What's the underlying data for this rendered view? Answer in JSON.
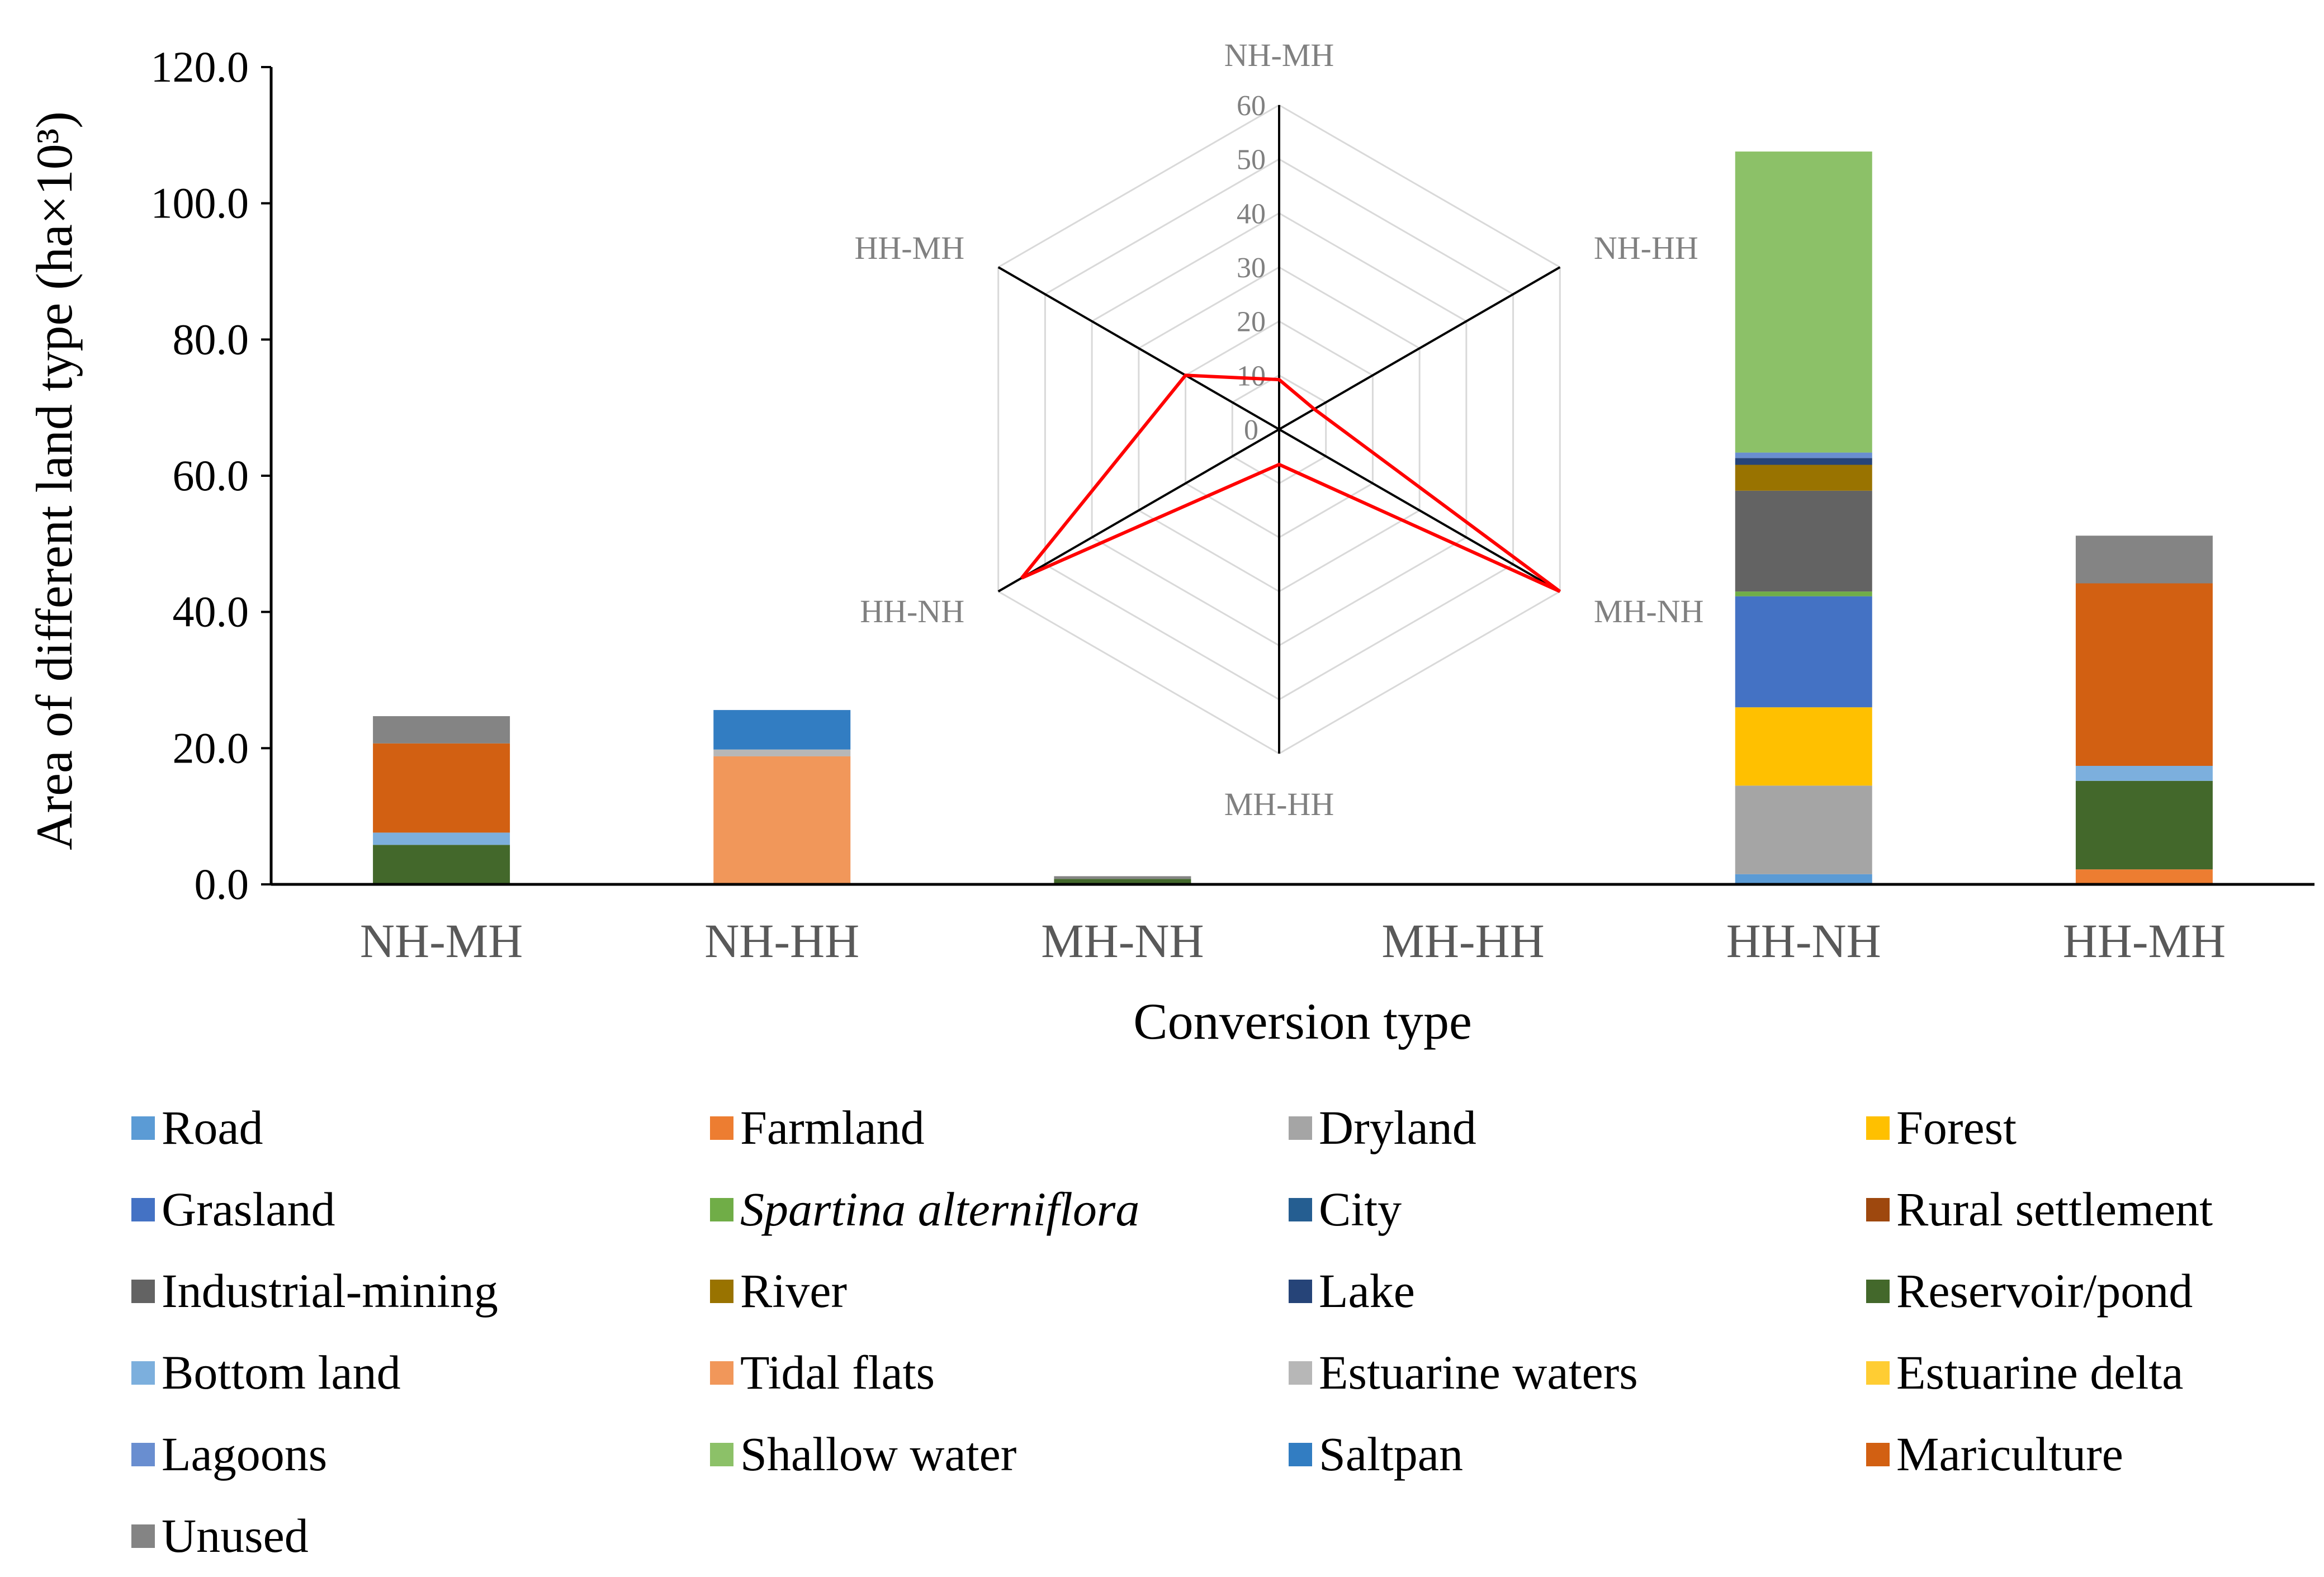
{
  "chart_data": [
    {
      "type": "bar",
      "stacked": true,
      "title": "",
      "xlabel": "Conversion type",
      "ylabel": "Area of different land type (ha×10³)",
      "ylim": [
        0,
        120
      ],
      "yticks": [
        "0.0",
        "20.0",
        "40.0",
        "60.0",
        "80.0",
        "100.0",
        "120.0"
      ],
      "ytick_values": [
        0,
        20,
        40,
        60,
        80,
        100,
        120
      ],
      "categories": [
        "NH-MH",
        "NH-HH",
        "MH-NH",
        "MH-HH",
        "HH-NH",
        "HH-MH"
      ],
      "series": [
        {
          "name": "Road",
          "color": "#5B9BD5",
          "values": [
            0,
            0,
            0,
            0,
            1.5,
            0
          ]
        },
        {
          "name": "Farmland",
          "color": "#ED7D31",
          "values": [
            0,
            0,
            0,
            0,
            0,
            2.2
          ]
        },
        {
          "name": "Dryland",
          "color": "#A5A5A5",
          "values": [
            0,
            0,
            0,
            0,
            13.0,
            0
          ]
        },
        {
          "name": "Forest",
          "color": "#FFC000",
          "values": [
            0,
            0,
            0,
            0,
            11.5,
            0
          ]
        },
        {
          "name": "Grasland",
          "color": "#4472C4",
          "values": [
            0,
            0,
            0,
            0,
            16.3,
            0
          ]
        },
        {
          "name": "Spartina alterniflora",
          "italic": true,
          "color": "#70AD47",
          "values": [
            0,
            0,
            0,
            0,
            0.7,
            0
          ]
        },
        {
          "name": "City",
          "color": "#255E91",
          "values": [
            0,
            0,
            0,
            0,
            0,
            0
          ]
        },
        {
          "name": "Rural settlement",
          "color": "#9E480E",
          "values": [
            0,
            0,
            0,
            0,
            0,
            0
          ]
        },
        {
          "name": "Industrial-mining",
          "color": "#636363",
          "values": [
            0,
            0,
            0,
            0,
            14.8,
            0
          ]
        },
        {
          "name": "River",
          "color": "#997300",
          "values": [
            0,
            0,
            0,
            0,
            3.8,
            0
          ]
        },
        {
          "name": "Lake",
          "color": "#264478",
          "values": [
            0,
            0,
            0,
            0,
            1.0,
            0
          ]
        },
        {
          "name": "Reservoir/pond",
          "color": "#43682B",
          "values": [
            5.8,
            0,
            0.8,
            0,
            0,
            13.0
          ]
        },
        {
          "name": "Bottom land",
          "color": "#7CAFDD",
          "values": [
            1.8,
            0,
            0,
            0,
            0,
            2.2
          ]
        },
        {
          "name": "Tidal flats",
          "color": "#F1975A",
          "values": [
            0,
            18.8,
            0,
            0,
            0,
            0
          ]
        },
        {
          "name": "Estuarine waters",
          "color": "#B7B7B7",
          "values": [
            0,
            1.0,
            0,
            0,
            0,
            0
          ]
        },
        {
          "name": "Estuarine delta",
          "color": "#FFCD33",
          "values": [
            0,
            0,
            0,
            0,
            0,
            0
          ]
        },
        {
          "name": "Lagoons",
          "color": "#698ED0",
          "values": [
            0,
            0,
            0,
            0,
            0.8,
            0
          ]
        },
        {
          "name": "Shallow water",
          "color": "#8CC168",
          "values": [
            0,
            0,
            0,
            0,
            44.2,
            0
          ]
        },
        {
          "name": "Saltpan",
          "color": "#327DC2",
          "values": [
            0,
            5.8,
            0,
            0,
            0,
            0
          ]
        },
        {
          "name": "Mariculture",
          "color": "#D26012",
          "values": [
            13.1,
            0,
            0,
            0,
            0,
            26.8
          ]
        },
        {
          "name": "Unused",
          "color": "#848484",
          "values": [
            4.0,
            0,
            0.4,
            0,
            0,
            7.0
          ]
        }
      ],
      "legend_position": "bottom"
    },
    {
      "type": "radar",
      "axes": [
        "NH-MH",
        "NH-HH",
        "MH-NH",
        "MH-HH",
        "HH-NH",
        "HH-MH"
      ],
      "values": [
        9.2,
        7.5,
        60.0,
        6.5,
        55.0,
        20.0
      ],
      "range": [
        0,
        60
      ],
      "ticks": [
        "0",
        "10",
        "20",
        "30",
        "40",
        "50",
        "60"
      ],
      "tick_values": [
        0,
        10,
        20,
        30,
        40,
        50,
        60
      ],
      "line_color": "#FF0000",
      "grid_color": "#D9D9D9",
      "spoke_color": "#000000"
    }
  ]
}
